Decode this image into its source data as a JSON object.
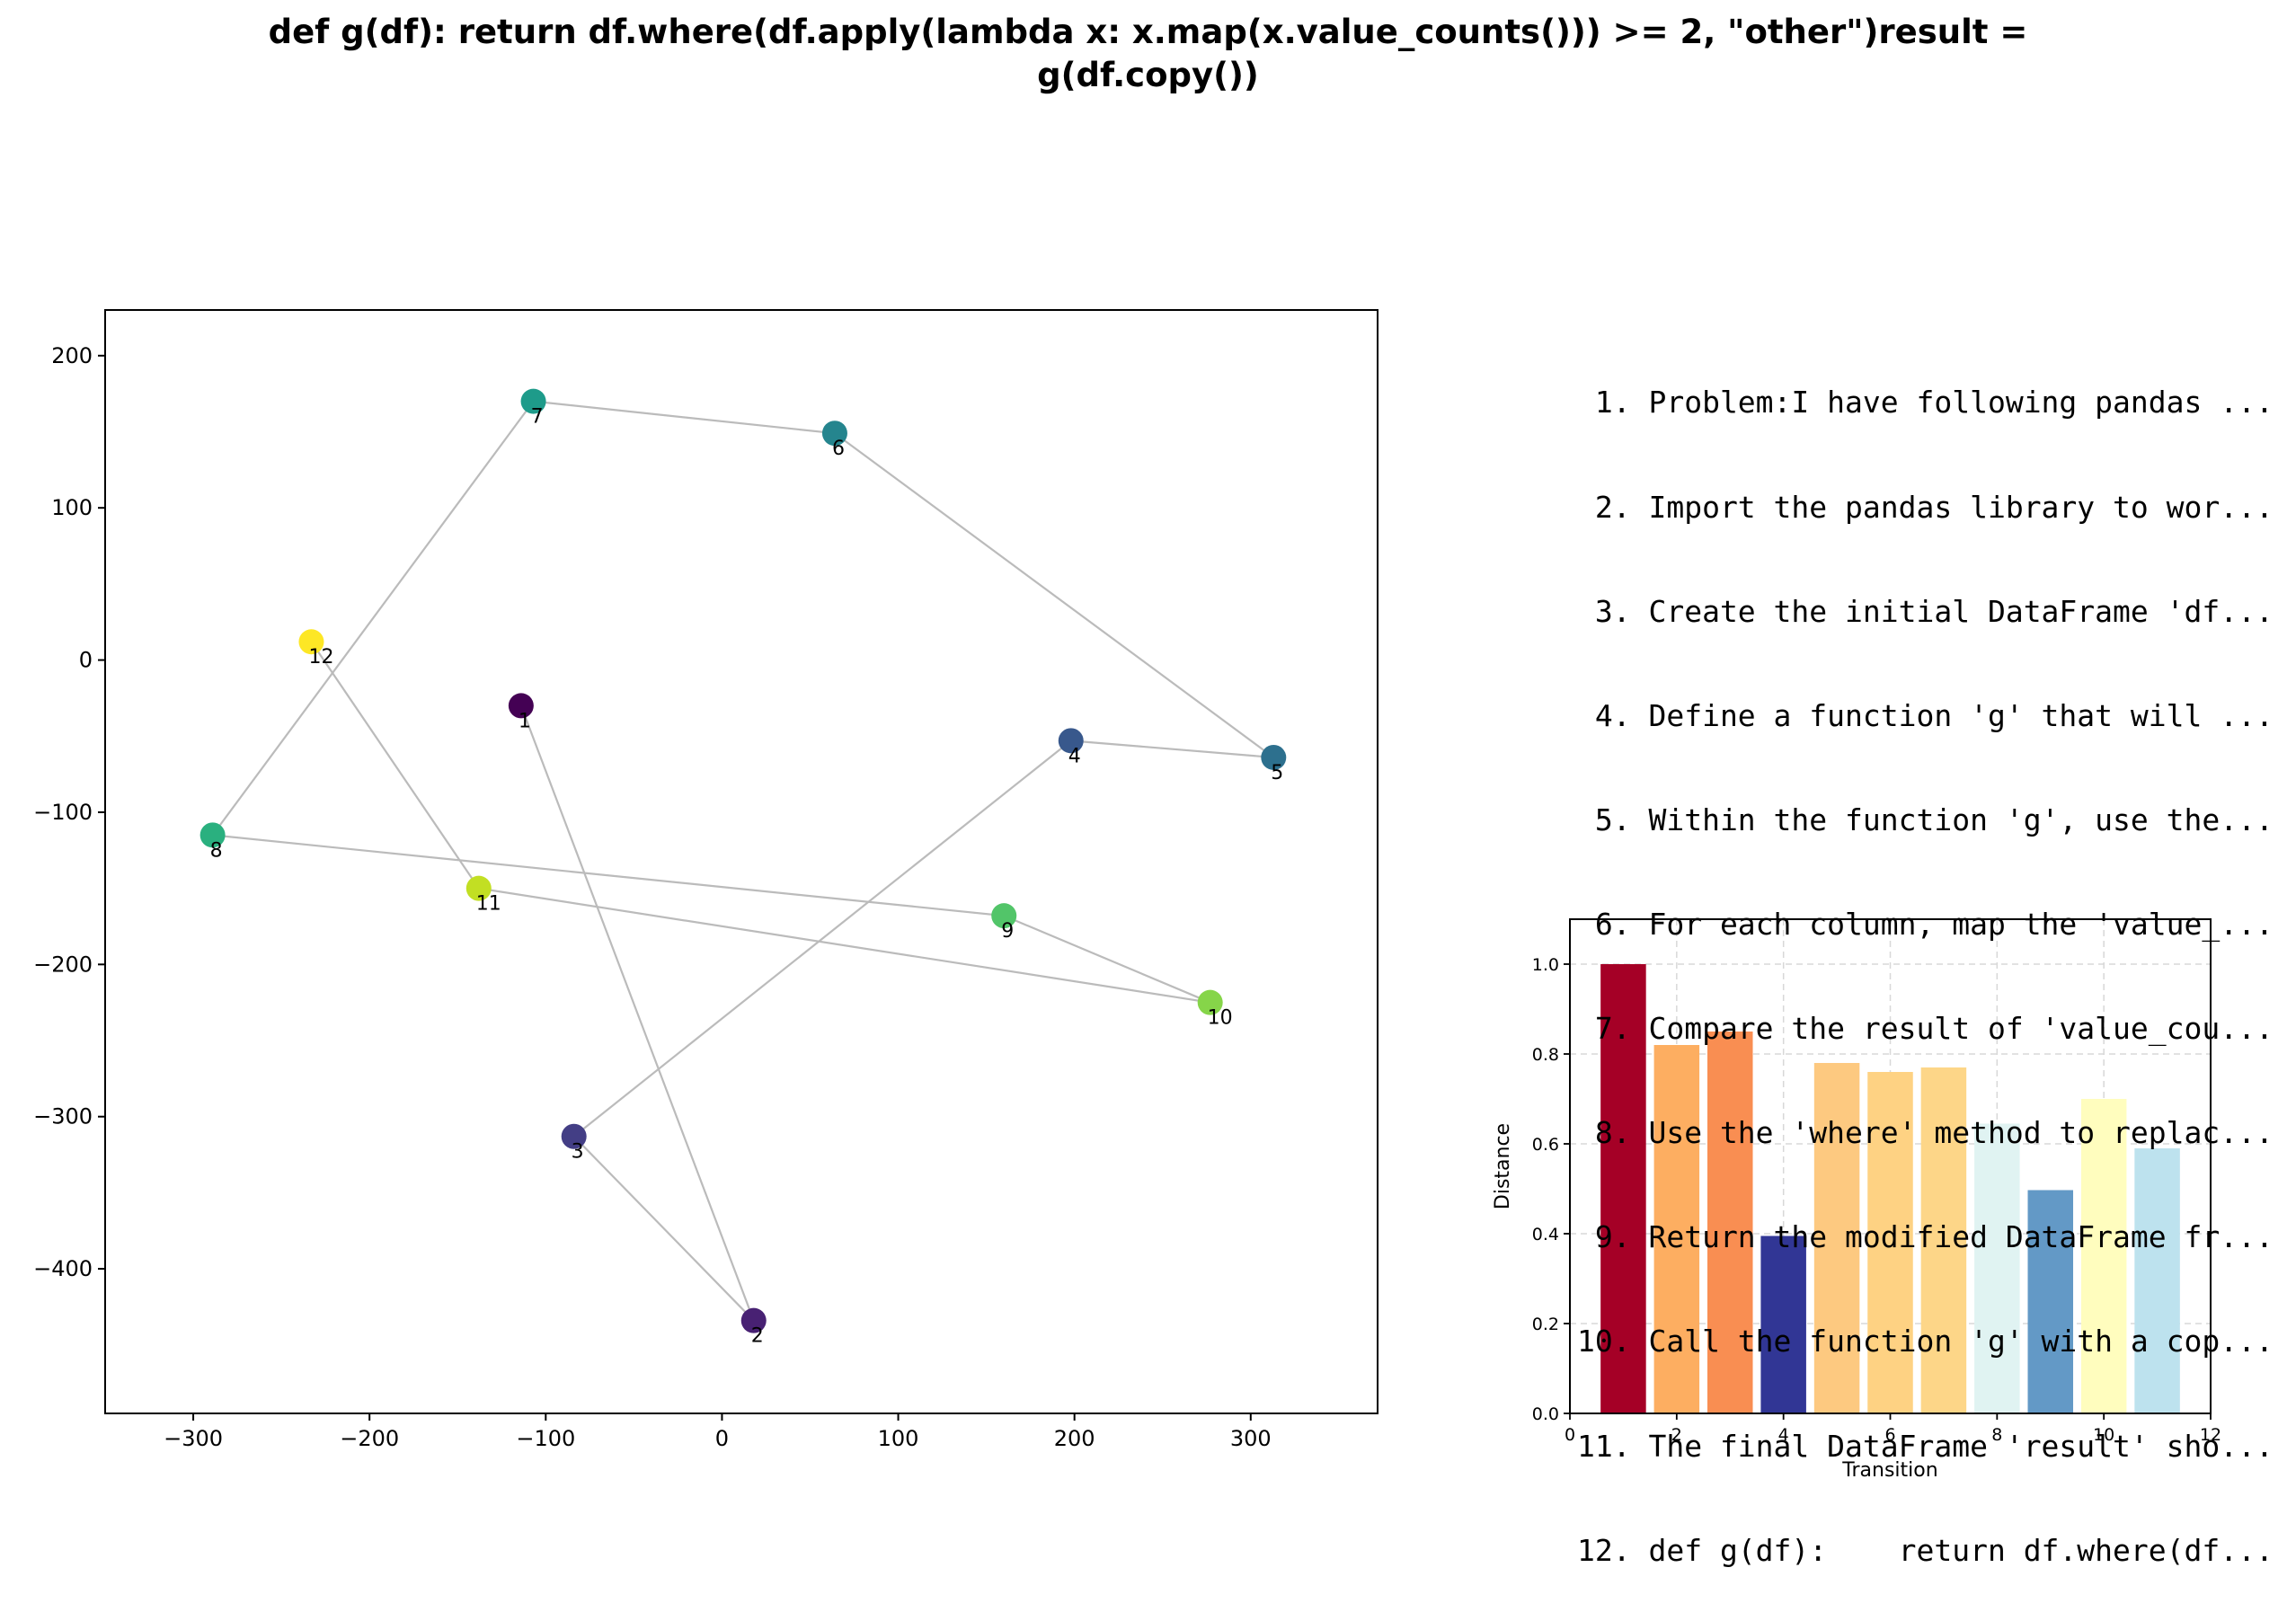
{
  "title_lines": [
    "def g(df):    return df.where(df.apply(lambda x: x.map(x.value_counts())) >= 2, \"other\")result =",
    "g(df.copy())"
  ],
  "steps": [
    " 1. Problem:I have following pandas ...",
    " 2. Import the pandas library to wor...",
    " 3. Create the initial DataFrame 'df...",
    " 4. Define a function 'g' that will ...",
    " 5. Within the function 'g', use the...",
    " 6. For each column, map the 'value_...",
    " 7. Compare the result of 'value_cou...",
    " 8. Use the 'where' method to replac...",
    " 9. Return the modified DataFrame fr...",
    "10. Call the function 'g' with a cop...",
    "11. The final DataFrame 'result' sho...",
    "12. def g(df):    return df.where(df..."
  ],
  "chart_data": [
    {
      "type": "scatter",
      "title": "",
      "xlabel": "",
      "ylabel": "",
      "xlim": [
        -350,
        372
      ],
      "ylim": [
        -495,
        230
      ],
      "xticks": [
        -300,
        -200,
        -100,
        0,
        100,
        200,
        300
      ],
      "yticks": [
        -400,
        -300,
        -200,
        -100,
        0,
        100,
        200
      ],
      "connected": true,
      "line_color": "#bbbbbb",
      "colormap": "viridis",
      "points": [
        {
          "label": "1",
          "x": -114,
          "y": -30,
          "color": "#440154"
        },
        {
          "label": "2",
          "x": 18,
          "y": -434,
          "color": "#482173"
        },
        {
          "label": "3",
          "x": -84,
          "y": -313,
          "color": "#433e85"
        },
        {
          "label": "4",
          "x": 198,
          "y": -53,
          "color": "#38588c"
        },
        {
          "label": "5",
          "x": 313,
          "y": -64,
          "color": "#2d708e"
        },
        {
          "label": "6",
          "x": 64,
          "y": 149,
          "color": "#25858e"
        },
        {
          "label": "7",
          "x": -107,
          "y": 170,
          "color": "#1e9b8a"
        },
        {
          "label": "8",
          "x": -289,
          "y": -115,
          "color": "#2ab07f"
        },
        {
          "label": "9",
          "x": 160,
          "y": -168,
          "color": "#52c569"
        },
        {
          "label": "10",
          "x": 277,
          "y": -225,
          "color": "#86d549"
        },
        {
          "label": "11",
          "x": -138,
          "y": -150,
          "color": "#c2df23"
        },
        {
          "label": "12",
          "x": -233,
          "y": 12,
          "color": "#fde725"
        }
      ]
    },
    {
      "type": "bar",
      "title": "",
      "xlabel": "Transition",
      "ylabel": "Distance",
      "xlim": [
        0,
        12
      ],
      "ylim": [
        0,
        1.1
      ],
      "xticks": [
        0,
        2,
        4,
        6,
        8,
        10,
        12
      ],
      "yticks": [
        0.0,
        0.2,
        0.4,
        0.6,
        0.8,
        1.0
      ],
      "grid": true,
      "colormap": "RdYlBu",
      "bars": [
        {
          "x": 1,
          "value": 1.0,
          "color": "#a50026"
        },
        {
          "x": 2,
          "value": 0.82,
          "color": "#fdae61"
        },
        {
          "x": 3,
          "value": 0.85,
          "color": "#f98e52"
        },
        {
          "x": 4,
          "value": 0.395,
          "color": "#313695"
        },
        {
          "x": 5,
          "value": 0.78,
          "color": "#fdc980"
        },
        {
          "x": 6,
          "value": 0.76,
          "color": "#fed283"
        },
        {
          "x": 7,
          "value": 0.77,
          "color": "#fdd688"
        },
        {
          "x": 8,
          "value": 0.645,
          "color": "#e0f3f2"
        },
        {
          "x": 9,
          "value": 0.497,
          "color": "#6399c6"
        },
        {
          "x": 10,
          "value": 0.7,
          "color": "#fffdbe"
        },
        {
          "x": 11,
          "value": 0.59,
          "color": "#bde2ee"
        }
      ]
    }
  ]
}
